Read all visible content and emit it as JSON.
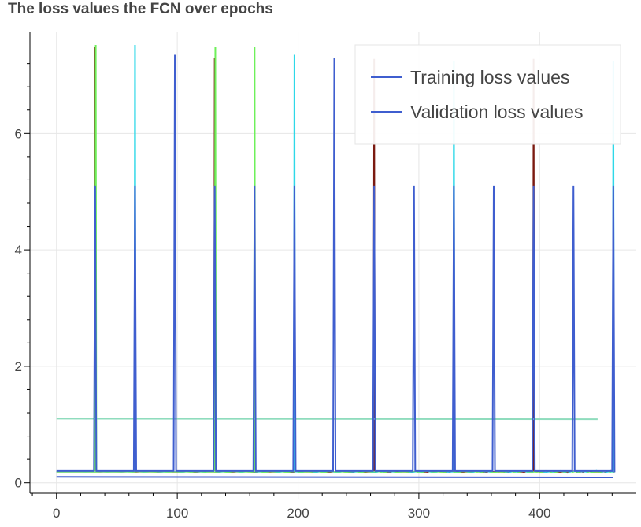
{
  "chart_data": {
    "type": "line",
    "title": "The loss values the FCN over epochs",
    "xlim": [
      -22,
      480
    ],
    "ylim": [
      -0.18,
      7.75
    ],
    "x_ticks": [
      0,
      100,
      200,
      300,
      400
    ],
    "y_ticks": [
      0,
      2,
      4,
      6
    ],
    "grid": true,
    "legend_position": "top-right",
    "legend": [
      "Training loss values",
      "Validation loss values"
    ],
    "colors": {
      "primary": "#3f5ecf",
      "dark_red": "#7b1a10",
      "cyan": "#2ed8e8",
      "green": "#6ef05a",
      "teal": "#8fdcbd"
    },
    "series": [
      {
        "name": "Training loss values",
        "color": "#3f5ecf",
        "baseline": 0.2,
        "spikes": [
          {
            "x": 32,
            "y": 5.1
          },
          {
            "x": 65,
            "y": 5.1
          },
          {
            "x": 98,
            "y": 7.35
          },
          {
            "x": 131,
            "y": 5.1
          },
          {
            "x": 164,
            "y": 5.1
          },
          {
            "x": 197,
            "y": 5.1
          },
          {
            "x": 230,
            "y": 7.3
          },
          {
            "x": 263,
            "y": 5.1
          },
          {
            "x": 296,
            "y": 5.1
          },
          {
            "x": 329,
            "y": 5.1
          },
          {
            "x": 362,
            "y": 5.1
          },
          {
            "x": 395,
            "y": 5.1
          },
          {
            "x": 428,
            "y": 5.1
          },
          {
            "x": 461,
            "y": 5.1
          }
        ]
      },
      {
        "name": "Validation loss values",
        "color": "#3f5ecf",
        "points": [
          [
            0,
            0.1
          ],
          [
            461,
            0.09
          ]
        ]
      }
    ],
    "background_spikes": [
      {
        "x": 32,
        "y": 7.48,
        "color": "#7b1a10"
      },
      {
        "x": 32.5,
        "y": 7.52,
        "color": "#6ef05a"
      },
      {
        "x": 65,
        "y": 7.52,
        "color": "#2ed8e8"
      },
      {
        "x": 131,
        "y": 7.3,
        "color": "#7b1a10"
      },
      {
        "x": 131.5,
        "y": 7.48,
        "color": "#6ef05a"
      },
      {
        "x": 164,
        "y": 7.48,
        "color": "#6ef05a"
      },
      {
        "x": 197,
        "y": 7.35,
        "color": "#2ed8e8"
      },
      {
        "x": 263,
        "y": 7.28,
        "color": "#7b1a10"
      },
      {
        "x": 329,
        "y": 7.25,
        "color": "#2ed8e8"
      },
      {
        "x": 395,
        "y": 7.28,
        "color": "#7b1a10"
      },
      {
        "x": 461,
        "y": 7.25,
        "color": "#2ed8e8"
      }
    ],
    "reference_line": {
      "color": "#8fdcbd",
      "points": [
        [
          0,
          1.1
        ],
        [
          448,
          1.09
        ]
      ]
    }
  }
}
